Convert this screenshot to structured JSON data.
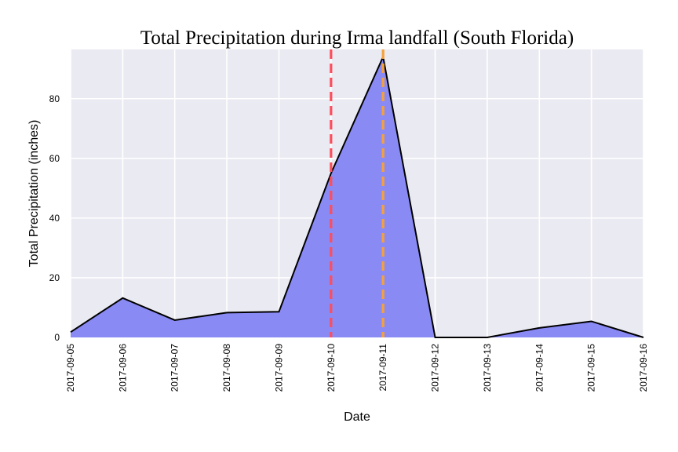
{
  "chart_data": {
    "type": "area",
    "title": "Total Precipitation during Irma landfall (South Florida)",
    "xlabel": "Date",
    "ylabel": "Total Precipitation (inches)",
    "x": [
      "2017-09-05",
      "2017-09-06",
      "2017-09-07",
      "2017-09-08",
      "2017-09-09",
      "2017-09-10",
      "2017-09-11",
      "2017-09-12",
      "2017-09-13",
      "2017-09-14",
      "2017-09-15",
      "2017-09-16"
    ],
    "values": [
      1.8,
      13.2,
      5.8,
      8.3,
      8.6,
      55.0,
      94.0,
      0.0,
      0.0,
      3.2,
      5.4,
      0.0
    ],
    "ylim": [
      0,
      96.5
    ],
    "yticks": [
      0,
      20,
      40,
      60,
      80
    ],
    "grid": true,
    "background": "#eaeaf2",
    "fill_color": "#8a8af5",
    "line_color": "#000000",
    "vlines": [
      {
        "x": "2017-09-10",
        "color": "#ff4d5a",
        "style": "dashed"
      },
      {
        "x": "2017-09-11",
        "color": "#f5a13c",
        "style": "dashed"
      }
    ]
  }
}
